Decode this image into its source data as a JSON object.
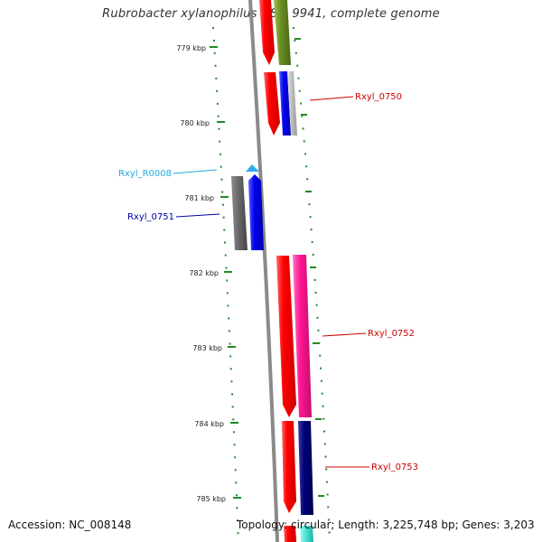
{
  "title": "Rubrobacter xylanophilus DSM 9941, complete genome",
  "footer": {
    "accession": "Accession: NC_008148",
    "topology": "Topology: circular; Length: 3,225,748 bp; Genes: 3,203"
  },
  "ticks": [
    {
      "label": "779 kbp",
      "kbp": 779
    },
    {
      "label": "780 kbp",
      "kbp": 780
    },
    {
      "label": "781 kbp",
      "kbp": 781
    },
    {
      "label": "782 kbp",
      "kbp": 782
    },
    {
      "label": "783 kbp",
      "kbp": 783
    },
    {
      "label": "784 kbp",
      "kbp": 784
    },
    {
      "label": "785 kbp",
      "kbp": 785
    }
  ],
  "gene_labels": [
    {
      "text": "Rxyl_0750",
      "color": "#cc0000"
    },
    {
      "text": "Rxyl_R0008",
      "color": "#22aadd"
    },
    {
      "text": "Rxyl_0751",
      "color": "#0000aa"
    },
    {
      "text": "Rxyl_0752",
      "color": "#cc0000"
    },
    {
      "text": "Rxyl_0753",
      "color": "#cc0000"
    }
  ],
  "colors": {
    "backbone": "#8a8a8a",
    "tick": "#228b22",
    "cds": "#ff0000",
    "cog_olive": "#6b8e23",
    "cog_blue": "#0000ee",
    "cog_grey": "#bbbbbb",
    "cog_dark_grey": "#666666",
    "cog_pink": "#ff1493",
    "cog_navy": "#00007a",
    "cog_teal": "#40e0d0",
    "trna": "#33aaee"
  }
}
